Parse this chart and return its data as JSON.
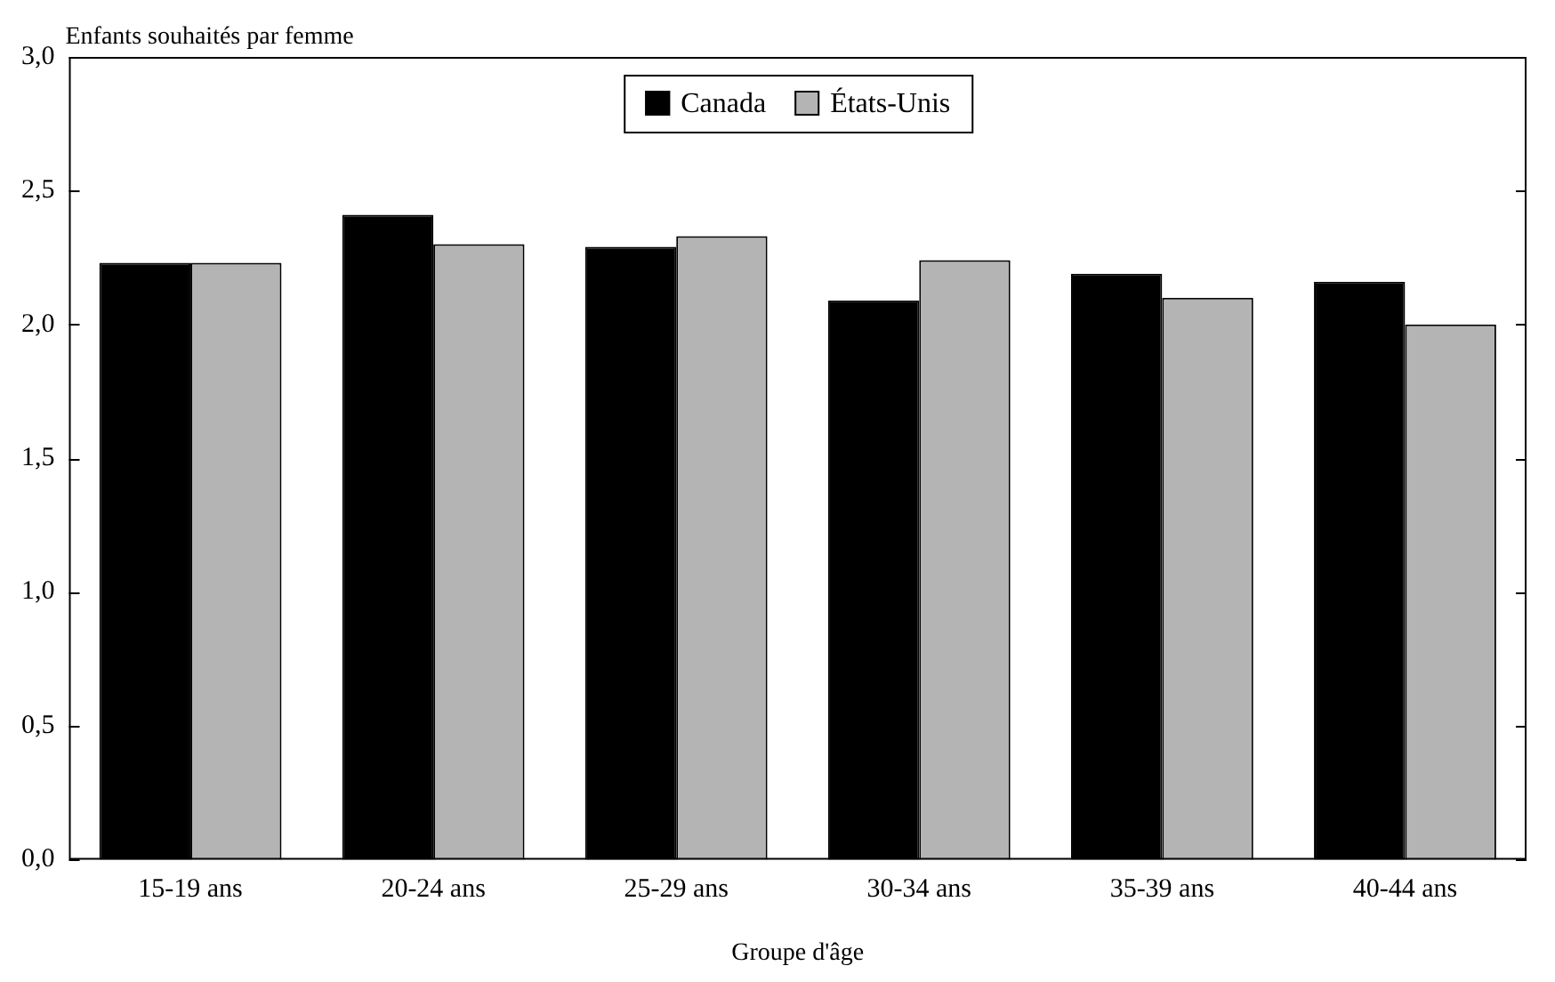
{
  "chart_data": {
    "type": "bar",
    "ylabel": "Enfants souhaités par femme",
    "xlabel": "Groupe d'âge",
    "categories": [
      "15-19 ans",
      "20-24 ans",
      "25-29 ans",
      "30-34 ans",
      "35-39 ans",
      "40-44 ans"
    ],
    "series": [
      {
        "name": "Canada",
        "color": "#000000",
        "values": [
          2.23,
          2.41,
          2.29,
          2.09,
          2.19,
          2.16
        ]
      },
      {
        "name": "États-Unis",
        "color": "#b4b4b4",
        "values": [
          2.23,
          2.3,
          2.33,
          2.24,
          2.1,
          2.0
        ]
      }
    ],
    "ylim": [
      0,
      3
    ],
    "yticks": [
      {
        "value": 0,
        "label": "0,0"
      },
      {
        "value": 0.5,
        "label": "0,5"
      },
      {
        "value": 1,
        "label": "1,0"
      },
      {
        "value": 1.5,
        "label": "1,5"
      },
      {
        "value": 2,
        "label": "2,0"
      },
      {
        "value": 2.5,
        "label": "2,5"
      },
      {
        "value": 3,
        "label": "3,0"
      }
    ],
    "grid": false,
    "legend": "top"
  }
}
